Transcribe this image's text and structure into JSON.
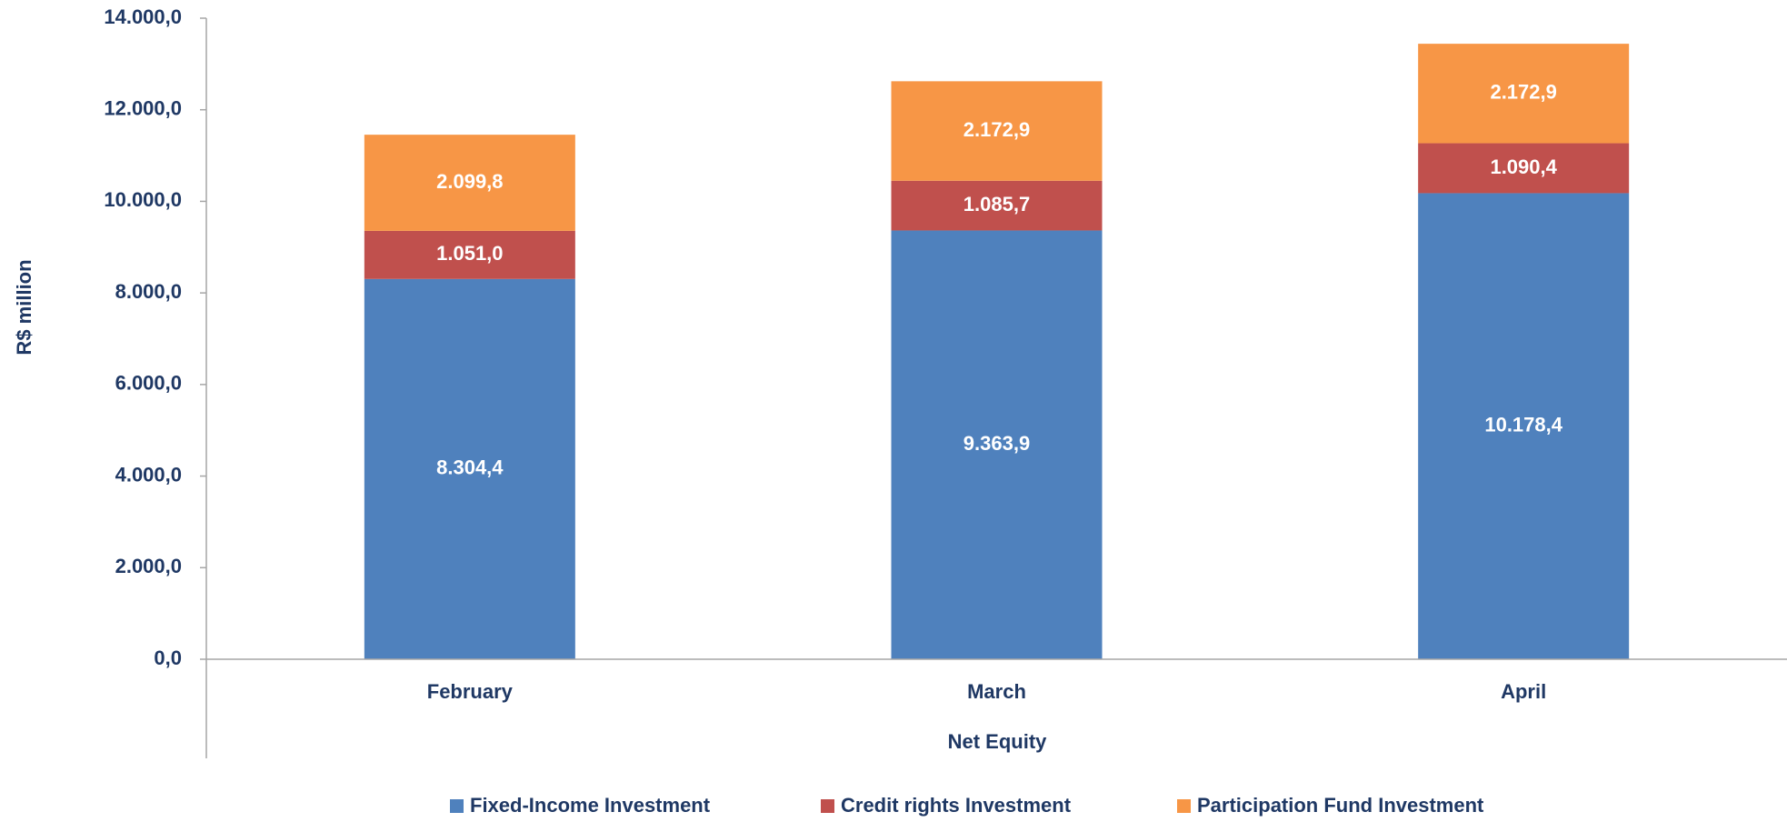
{
  "chart_data": {
    "type": "stacked_bar",
    "y_label": "R$ million",
    "x_label": "Net Equity",
    "categories": [
      "February",
      "March",
      "April"
    ],
    "series": [
      {
        "name": "Fixed-Income Investment",
        "color": "#4f81bd",
        "values": [
          8304.4,
          9363.9,
          10178.4
        ],
        "value_labels": [
          "8.304,4",
          "9.363,9",
          "10.178,4"
        ]
      },
      {
        "name": "Credit rights Investment",
        "color": "#c0504d",
        "values": [
          1051.0,
          1085.7,
          1090.4
        ],
        "value_labels": [
          "1.051,0",
          "1.085,7",
          "1.090,4"
        ]
      },
      {
        "name": "Participation Fund Investment",
        "color": "#f79646",
        "values": [
          2099.8,
          2172.9,
          2172.9
        ],
        "value_labels": [
          "2.099,8",
          "2.172,9",
          "2.172,9"
        ]
      }
    ],
    "ylim": [
      0,
      14000
    ],
    "yticks": [
      {
        "value": 0,
        "label": "0,0"
      },
      {
        "value": 2000,
        "label": "2.000,0"
      },
      {
        "value": 4000,
        "label": "4.000,0"
      },
      {
        "value": 6000,
        "label": "6.000,0"
      },
      {
        "value": 8000,
        "label": "8.000,0"
      },
      {
        "value": 10000,
        "label": "10.000,0"
      },
      {
        "value": 12000,
        "label": "12.000,0"
      },
      {
        "value": 14000,
        "label": "14.000,0"
      }
    ],
    "grid": false,
    "legend": "bottom"
  }
}
